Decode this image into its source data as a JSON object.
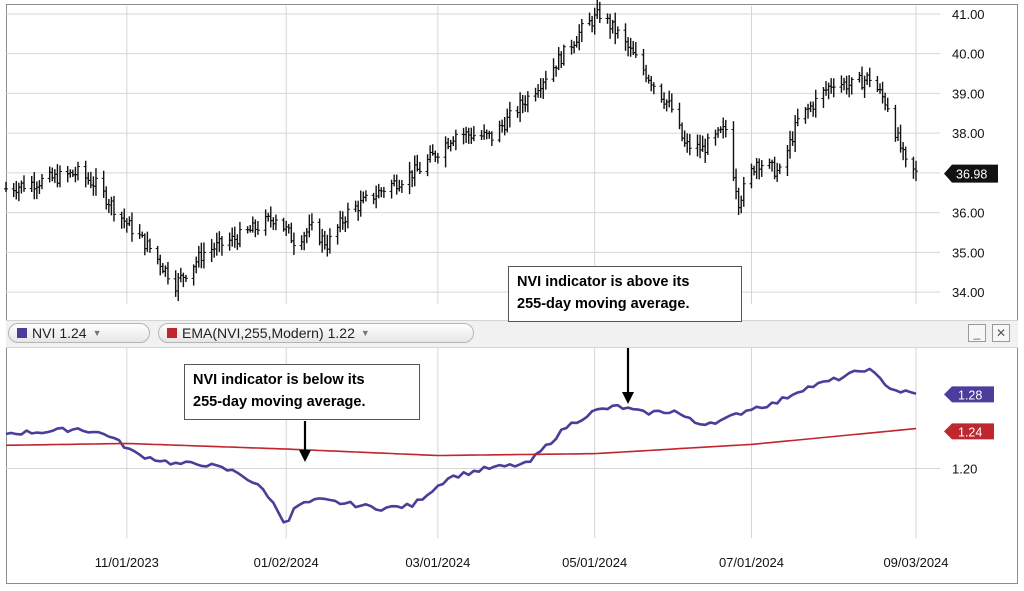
{
  "chart_data": [
    {
      "type": "ohlc-bar",
      "panel": "price",
      "title": "",
      "xlabel": "",
      "ylabel": "",
      "ylim": [
        33.7,
        41.2
      ],
      "yticks": [
        "34.00",
        "35.00",
        "36.00",
        "37.00",
        "38.00",
        "39.00",
        "40.00",
        "41.00"
      ],
      "last_value_label": "36.98",
      "grid": true,
      "series": [
        {
          "name": "",
          "x": [
            "2023-09-15",
            "2023-09-29",
            "2023-10-13",
            "2023-10-20",
            "2023-10-31",
            "2023-11-10",
            "2023-11-20",
            "2023-12-01",
            "2023-12-15",
            "2023-12-29",
            "2024-01-05",
            "2024-01-12",
            "2024-01-18",
            "2024-01-26",
            "2024-02-09",
            "2024-02-23",
            "2024-03-08",
            "2024-03-22",
            "2024-04-05",
            "2024-04-19",
            "2024-04-26",
            "2024-05-03",
            "2024-05-10",
            "2024-05-20",
            "2024-05-31",
            "2024-06-05",
            "2024-06-12",
            "2024-06-21",
            "2024-06-26",
            "2024-07-03",
            "2024-07-12",
            "2024-07-19",
            "2024-08-02",
            "2024-08-09",
            "2024-08-16",
            "2024-08-23",
            "2024-08-30",
            "2024-09-03"
          ],
          "close": [
            36.6,
            36.8,
            37.0,
            36.7,
            35.8,
            35.1,
            34.2,
            35.0,
            35.4,
            35.9,
            35.3,
            35.6,
            35.2,
            36.0,
            36.6,
            37.1,
            38.0,
            37.9,
            38.9,
            40.0,
            40.6,
            41.0,
            40.5,
            39.6,
            38.6,
            37.7,
            37.6,
            38.1,
            36.3,
            37.3,
            37.0,
            38.3,
            39.3,
            39.2,
            39.4,
            38.7,
            37.2,
            36.98
          ]
        }
      ]
    },
    {
      "type": "line",
      "panel": "indicator",
      "title": "",
      "xlabel": "",
      "ylabel": "",
      "ylim": [
        1.125,
        1.33
      ],
      "yticks": [
        "1.20"
      ],
      "x_tick_labels": [
        "11/01/2023",
        "01/02/2024",
        "03/01/2024",
        "05/01/2024",
        "07/01/2024",
        "09/03/2024"
      ],
      "grid": true,
      "series": [
        {
          "name": "NVI",
          "color": "#4b3d9a",
          "last_value_label": "1.28",
          "x": [
            "2023-09-15",
            "2023-10-01",
            "2023-10-13",
            "2023-10-25",
            "2023-11-05",
            "2023-11-20",
            "2023-12-01",
            "2023-12-15",
            "2023-12-25",
            "2024-01-02",
            "2024-01-06",
            "2024-01-15",
            "2024-01-31",
            "2024-02-08",
            "2024-02-20",
            "2024-03-05",
            "2024-03-20",
            "2024-04-05",
            "2024-04-20",
            "2024-05-01",
            "2024-05-10",
            "2024-05-20",
            "2024-06-01",
            "2024-06-10",
            "2024-06-20",
            "2024-07-01",
            "2024-07-10",
            "2024-07-20",
            "2024-08-05",
            "2024-08-15",
            "2024-08-25",
            "2024-09-03"
          ],
          "y": [
            1.238,
            1.24,
            1.243,
            1.236,
            1.215,
            1.205,
            1.205,
            1.195,
            1.175,
            1.14,
            1.16,
            1.166,
            1.16,
            1.157,
            1.16,
            1.19,
            1.2,
            1.205,
            1.245,
            1.262,
            1.267,
            1.26,
            1.262,
            1.248,
            1.252,
            1.265,
            1.27,
            1.285,
            1.298,
            1.308,
            1.285,
            1.28
          ]
        },
        {
          "name": "EMA(NVI,255,Modern)",
          "color": "#c0262d",
          "last_value_label": "1.24",
          "x": [
            "2023-09-15",
            "2023-11-01",
            "2024-01-02",
            "2024-03-01",
            "2024-05-01",
            "2024-07-01",
            "2024-09-03"
          ],
          "y": [
            1.225,
            1.227,
            1.221,
            1.214,
            1.216,
            1.226,
            1.243
          ]
        }
      ]
    }
  ],
  "legend": {
    "nvi_label": "NVI",
    "nvi_value": "1.24",
    "ema_label": "EMA(NVI,255,Modern)",
    "ema_value": "1.22",
    "caret": "▼",
    "minimize": "_",
    "close": "✕"
  },
  "annotations": {
    "below_line1": "NVI indicator is below its",
    "below_line2": "255-day moving average.",
    "above_line1": "NVI indicator is above its",
    "above_line2": "255-day moving average."
  }
}
